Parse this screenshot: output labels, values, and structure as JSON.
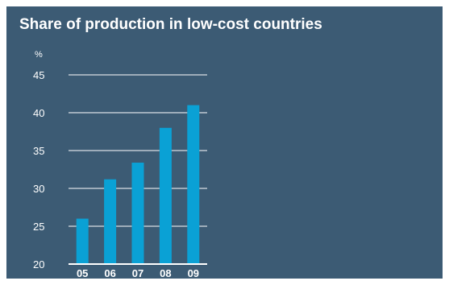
{
  "chart_data": {
    "type": "bar",
    "title": "Share of production in low-cost countries",
    "unit_label": "%",
    "categories": [
      "05",
      "06",
      "07",
      "08",
      "09"
    ],
    "values": [
      26,
      31.2,
      33.4,
      38,
      41
    ],
    "ylim": [
      20,
      45
    ],
    "yticks": [
      20,
      25,
      30,
      35,
      40,
      45
    ],
    "grid": true,
    "xlabel": "",
    "ylabel": ""
  },
  "colors": {
    "background": "#3c5b74",
    "bar": "#0aa1d5",
    "grid": "#ffffff",
    "text": "#ffffff"
  }
}
